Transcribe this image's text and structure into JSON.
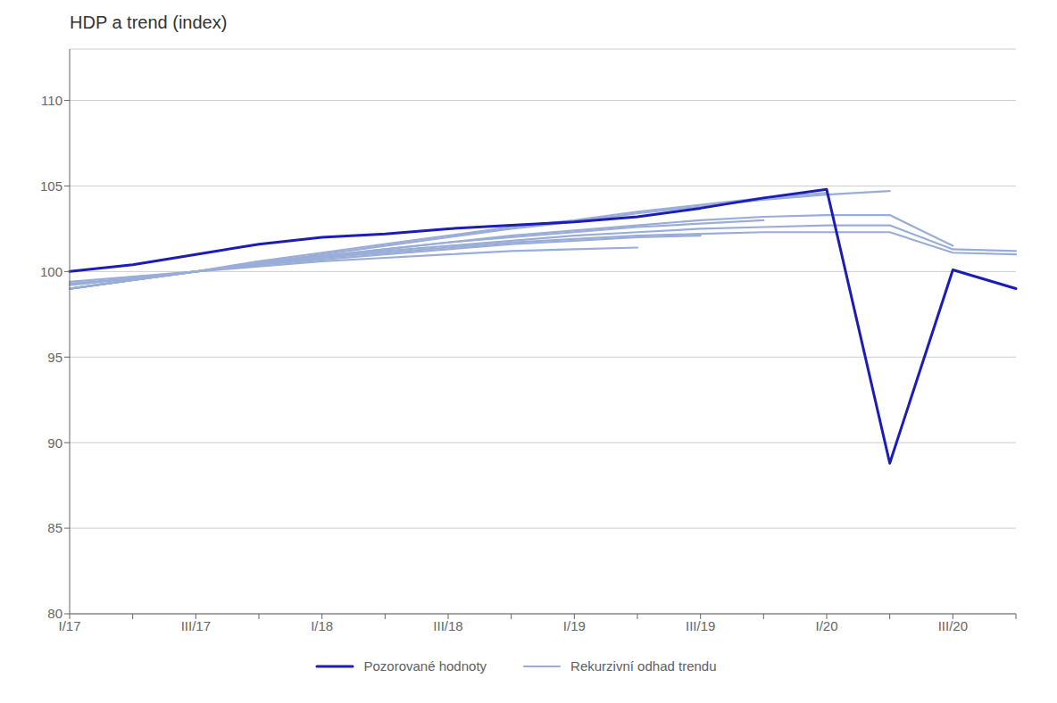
{
  "chart_data": {
    "type": "line",
    "title": "HDP a trend (index)",
    "categories": [
      "I/17",
      null,
      "III/17",
      null,
      "I/18",
      null,
      "III/18",
      null,
      "I/19",
      null,
      "III/19",
      null,
      "I/20",
      null,
      "III/20",
      null
    ],
    "series": [
      {
        "name": "Rekurzivní odhad trendu",
        "color": "#9AADD8",
        "values": [
          99.4,
          99.7,
          100.0,
          100.3,
          100.6,
          100.8,
          101.0,
          101.2,
          101.3,
          101.4,
          null,
          null,
          null,
          null,
          null,
          null
        ]
      },
      {
        "name": "Rekurzivní odhad trendu",
        "color": "#9AADD8",
        "values": [
          99.3,
          99.6,
          100.0,
          100.4,
          100.7,
          101.0,
          101.3,
          101.6,
          101.8,
          102.0,
          102.1,
          null,
          null,
          null,
          null,
          null
        ]
      },
      {
        "name": "Rekurzivní odhad trendu",
        "color": "#9AADD8",
        "values": [
          99.2,
          99.6,
          100.0,
          100.5,
          100.9,
          101.3,
          101.7,
          102.0,
          102.3,
          102.6,
          102.8,
          103.0,
          null,
          null,
          null,
          null
        ]
      },
      {
        "name": "Rekurzivní odhad trendu",
        "color": "#9AADD8",
        "values": [
          99.0,
          99.5,
          100.0,
          100.6,
          101.1,
          101.6,
          102.1,
          102.6,
          103.0,
          103.5,
          103.9,
          104.3,
          104.6,
          null,
          null,
          null
        ]
      },
      {
        "name": "Rekurzivní odhad trendu",
        "color": "#9AADD8",
        "values": [
          99.0,
          99.5,
          100.0,
          100.5,
          101.0,
          101.5,
          102.0,
          102.5,
          102.9,
          103.4,
          103.8,
          104.2,
          104.5,
          104.7,
          null,
          null
        ]
      },
      {
        "name": "Rekurzivní odhad trendu",
        "color": "#9AADD8",
        "values": [
          99.0,
          99.5,
          100.0,
          100.5,
          100.9,
          101.3,
          101.7,
          102.1,
          102.4,
          102.7,
          103.0,
          103.2,
          103.3,
          103.3,
          101.5,
          null
        ]
      },
      {
        "name": "Rekurzivní odhad trendu",
        "color": "#9AADD8",
        "values": [
          99.0,
          99.5,
          100.0,
          100.4,
          100.8,
          101.2,
          101.5,
          101.8,
          102.1,
          102.3,
          102.5,
          102.6,
          102.7,
          102.7,
          101.3,
          101.2
        ]
      },
      {
        "name": "Rekurzivní odhad trendu",
        "color": "#9AADD8",
        "values": [
          99.0,
          99.5,
          100.0,
          100.4,
          100.8,
          101.1,
          101.4,
          101.7,
          101.9,
          102.1,
          102.2,
          102.3,
          102.3,
          102.3,
          101.1,
          101.0
        ]
      },
      {
        "name": "Pozorované hodnoty",
        "color": "#1C1CB8",
        "values": [
          100.0,
          100.4,
          101.0,
          101.6,
          102.0,
          102.2,
          102.5,
          102.7,
          102.9,
          103.2,
          103.7,
          104.3,
          104.8,
          88.8,
          100.1,
          99.0
        ]
      }
    ],
    "ylim": [
      80,
      113
    ],
    "yticks": [
      80,
      85,
      90,
      95,
      100,
      105,
      110
    ],
    "grid": true,
    "legend": "bottom"
  }
}
